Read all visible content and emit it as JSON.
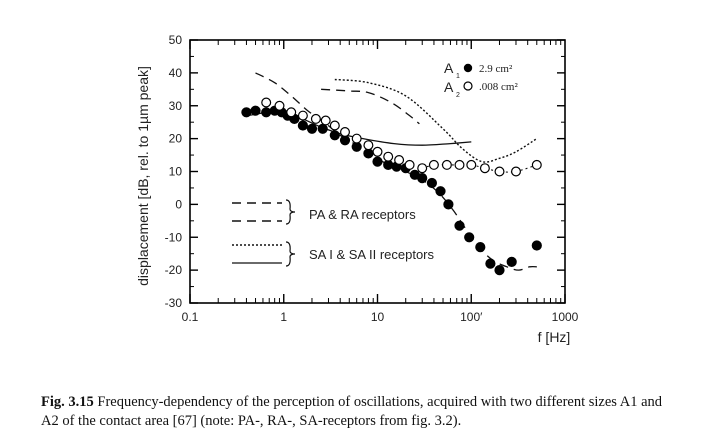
{
  "chart_data": {
    "type": "scatter",
    "xlabel": "f [Hz]",
    "ylabel": "displacement [dB, rel. to 1µm peak]",
    "xscale": "log",
    "xlim": [
      0.1,
      1000
    ],
    "ylim": [
      -30,
      50
    ],
    "xticks": [
      {
        "value": 0.1,
        "label": "0.1"
      },
      {
        "value": 1,
        "label": "1"
      },
      {
        "value": 10,
        "label": "10"
      },
      {
        "value": 100,
        "label": "100′"
      },
      {
        "value": 1000,
        "label": "1000"
      }
    ],
    "yticks": [
      -30,
      -20,
      -10,
      0,
      10,
      20,
      30,
      40,
      50
    ],
    "yticklabels": [
      "-30",
      "-20",
      "-10",
      "0",
      "10",
      "20",
      "30",
      "40",
      "50"
    ],
    "grid": false,
    "series": [
      {
        "name": "A1",
        "area": "2.9 cm²",
        "marker": "filled-circle",
        "connector": "dashed",
        "color": "#000000",
        "points": [
          [
            0.4,
            28
          ],
          [
            0.5,
            28.5
          ],
          [
            0.65,
            28
          ],
          [
            0.8,
            28.5
          ],
          [
            0.95,
            28
          ],
          [
            1.1,
            27
          ],
          [
            1.3,
            26
          ],
          [
            1.6,
            24
          ],
          [
            2,
            23
          ],
          [
            2.6,
            23
          ],
          [
            3.5,
            21
          ],
          [
            4.5,
            19.5
          ],
          [
            6,
            17.5
          ],
          [
            8,
            15.5
          ],
          [
            10,
            13
          ],
          [
            13,
            12
          ],
          [
            16,
            11.5
          ],
          [
            20,
            11
          ],
          [
            25,
            9
          ],
          [
            30,
            8
          ],
          [
            38,
            6.5
          ],
          [
            47,
            4
          ],
          [
            57,
            0
          ],
          [
            75,
            -6.5
          ],
          [
            95,
            -10
          ],
          [
            125,
            -13
          ],
          [
            160,
            -18
          ],
          [
            200,
            -20
          ],
          [
            270,
            -17.5
          ],
          [
            500,
            -12.5
          ]
        ]
      },
      {
        "name": "A2",
        "area": ".008 cm²",
        "marker": "open-circle",
        "connector": "dotted",
        "color": "#000000",
        "points": [
          [
            0.65,
            31
          ],
          [
            0.9,
            30
          ],
          [
            1.2,
            28
          ],
          [
            1.6,
            27
          ],
          [
            2.2,
            26
          ],
          [
            2.8,
            25.5
          ],
          [
            3.5,
            24
          ],
          [
            4.5,
            22
          ],
          [
            6,
            20
          ],
          [
            8,
            18
          ],
          [
            10,
            16
          ],
          [
            13,
            14.5
          ],
          [
            17,
            13.5
          ],
          [
            22,
            12
          ],
          [
            30,
            11
          ],
          [
            40,
            12
          ],
          [
            55,
            12
          ],
          [
            75,
            12
          ],
          [
            100,
            12
          ],
          [
            140,
            11
          ],
          [
            200,
            10
          ],
          [
            300,
            10
          ],
          [
            500,
            12
          ]
        ]
      },
      {
        "name": "PA & RA receptors",
        "linestyle": "dashed",
        "curves": [
          [
            [
              0.5,
              40
            ],
            [
              0.8,
              37
            ],
            [
              1.2,
              33
            ],
            [
              1.8,
              28.5
            ],
            [
              2.7,
              25
            ],
            [
              4,
              21
            ],
            [
              6,
              18
            ],
            [
              9,
              15
            ],
            [
              13,
              12
            ],
            [
              20,
              10
            ],
            [
              30,
              7.5
            ],
            [
              45,
              3.5
            ],
            [
              65,
              -2
            ],
            [
              90,
              -8
            ],
            [
              120,
              -13
            ],
            [
              170,
              -17
            ],
            [
              240,
              -19
            ],
            [
              320,
              -20
            ],
            [
              420,
              -19
            ],
            [
              500,
              -19
            ]
          ],
          [
            [
              2.5,
              35
            ],
            [
              5,
              34.5
            ],
            [
              8,
              34
            ],
            [
              14,
              31
            ],
            [
              22,
              27
            ],
            [
              28,
              24.5
            ]
          ]
        ]
      },
      {
        "name": "SA I & SA II receptors",
        "linestyle": "solid-dotted",
        "curves": [
          [
            [
              3.5,
              38
            ],
            [
              8,
              37
            ],
            [
              20,
              33
            ],
            [
              50,
              23
            ],
            [
              80,
              17
            ],
            [
              130,
              13
            ],
            [
              200,
              14
            ],
            [
              300,
              16
            ],
            [
              500,
              20
            ]
          ],
          [
            [
              0.4,
              27
            ],
            [
              1,
              28
            ],
            [
              2.5,
              23.5
            ],
            [
              4,
              21.5
            ],
            [
              7,
              20
            ],
            [
              15,
              18.5
            ],
            [
              30,
              18
            ],
            [
              60,
              18.5
            ],
            [
              100,
              19
            ]
          ]
        ]
      }
    ],
    "legend": {
      "placement": "center-left",
      "entries": [
        {
          "text": "PA & RA receptors"
        },
        {
          "text": "SA I & SA II receptors"
        }
      ]
    },
    "annotations": {
      "series_label_letter": "A",
      "series_label_sub_1": "1",
      "series_label_sub_2": "2"
    }
  },
  "caption": {
    "number": "Fig. 3.15",
    "text": "Frequency-dependency of the perception of oscillations, acquired with two different sizes A1 and A2 of the contact area [67] (note: PA-, RA-, SA-receptors from fig. 3.2)."
  }
}
